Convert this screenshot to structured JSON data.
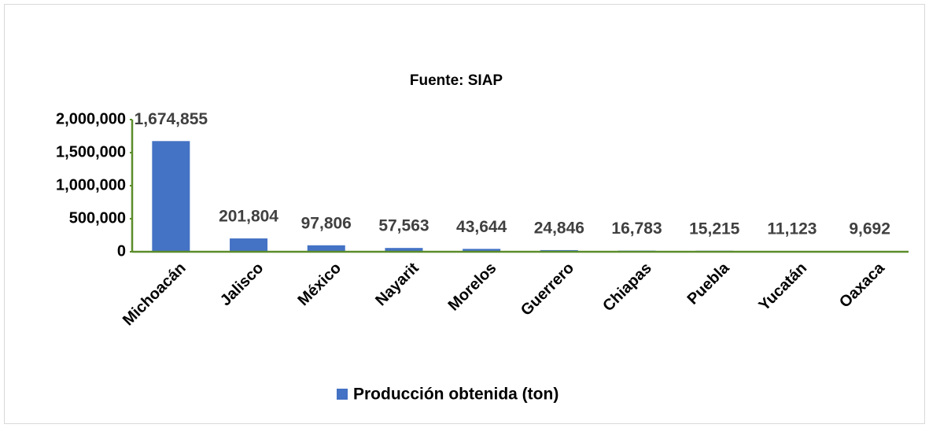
{
  "chart_data": {
    "type": "bar",
    "title": "Fuente: SIAP",
    "categories": [
      "Michoacán",
      "Jalisco",
      "México",
      "Nayarit",
      "Morelos",
      "Guerrero",
      "Chiapas",
      "Puebla",
      "Yucatán",
      "Oaxaca"
    ],
    "series": [
      {
        "name": "Producción obtenida (ton)",
        "color": "#4472c4",
        "values": [
          1674855,
          201804,
          97806,
          57563,
          43644,
          24846,
          16783,
          15215,
          11123,
          9692
        ],
        "value_labels": [
          "1,674,855",
          "201,804",
          "97,806",
          "57,563",
          "43,644",
          "24,846",
          "16,783",
          "15,215",
          "11,123",
          "9,692"
        ]
      }
    ],
    "ylim": [
      0,
      2000000
    ],
    "yticks": [
      0,
      {
        "value": 500000,
        "label": "500,000"
      },
      {
        "value": 1000000,
        "label": "1,000,000"
      },
      {
        "value": 1500000,
        "label": "1,500,000"
      },
      {
        "value": 2000000,
        "label": "2,000,000"
      }
    ],
    "grid": false,
    "legend": "bottom"
  }
}
